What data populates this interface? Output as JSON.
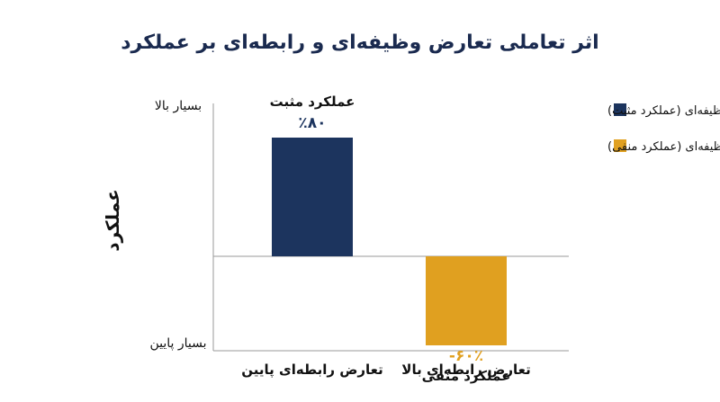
{
  "chart_data": {
    "type": "bar",
    "title": "اثر تعاملی تعارض وظیفه‌ای و رابطه‌ای بر عملکرد",
    "ylabel": "عملکرد",
    "y_top_label": "بسیار بالا",
    "y_bottom_label": "بسیار پایین",
    "ylim": [
      -100,
      100
    ],
    "categories": [
      "تعارض رابطه‌ای پایین",
      "تعارض رابطه‌ای بالا"
    ],
    "values": [
      80,
      -60
    ],
    "value_labels": [
      "٪۸۰",
      "-۶۰٪"
    ],
    "bar_labels": [
      "عملکرد مثبت",
      "عملکرد منفی"
    ],
    "colors": [
      "#1c345e",
      "#e0a020"
    ],
    "legend": [
      {
        "label": "سرمه‌ای: تعارض وظیفه‌ای (عملکرد مثبت)",
        "color": "#1c345e"
      },
      {
        "label": "کهربایی: تعارض وظیفه‌ای (عملکرد منفی)",
        "color": "#e0a020"
      }
    ],
    "legend_position": "top-right",
    "grid": false
  }
}
